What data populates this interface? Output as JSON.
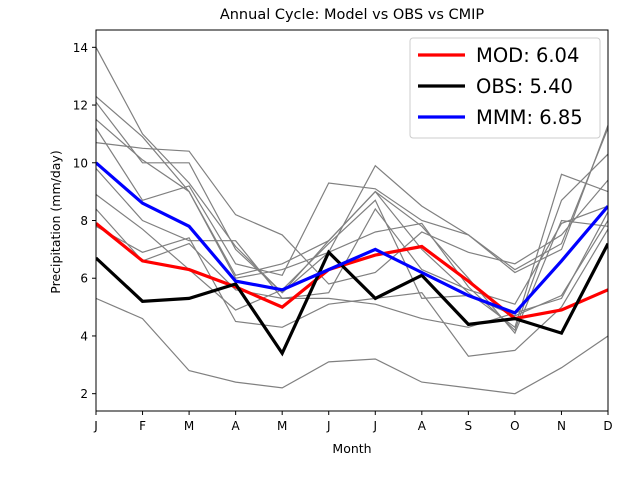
{
  "chart_data": {
    "type": "line",
    "title": "Annual Cycle: Model vs OBS vs CMIP",
    "xlabel": "Month",
    "ylabel": "Precipitation (mm/day)",
    "categories": [
      "J",
      "F",
      "M",
      "A",
      "M",
      "J",
      "J",
      "A",
      "S",
      "O",
      "N",
      "D"
    ],
    "ylim": [
      1.4,
      14.6
    ],
    "yticks": [
      2,
      4,
      6,
      8,
      10,
      12,
      14
    ],
    "grid": false,
    "legend_position": "top-right",
    "ensemble_color": "#808080",
    "ensemble": [
      [
        14.0,
        11.0,
        9.3,
        7.1,
        5.5,
        7.3,
        9.0,
        7.8,
        6.0,
        4.1,
        8.0,
        7.8
      ],
      [
        12.3,
        10.9,
        9.0,
        6.1,
        6.5,
        7.3,
        9.0,
        7.0,
        5.5,
        4.3,
        9.6,
        9.0
      ],
      [
        12.1,
        10.0,
        10.0,
        7.0,
        5.5,
        6.9,
        9.9,
        8.5,
        7.5,
        6.2,
        7.0,
        11.3
      ],
      [
        11.5,
        10.1,
        9.0,
        6.0,
        6.3,
        6.9,
        7.6,
        7.9,
        5.7,
        4.2,
        8.7,
        10.3
      ],
      [
        11.2,
        8.7,
        9.2,
        6.5,
        6.1,
        9.3,
        9.1,
        8.0,
        7.5,
        6.3,
        7.2,
        11.2
      ],
      [
        10.7,
        10.5,
        10.4,
        8.2,
        7.5,
        5.8,
        6.2,
        7.6,
        6.9,
        6.5,
        7.5,
        9.4
      ],
      [
        9.8,
        8.0,
        7.3,
        7.3,
        5.3,
        5.5,
        8.4,
        6.3,
        5.6,
        5.1,
        7.9,
        8.5
      ],
      [
        8.9,
        7.7,
        6.3,
        4.9,
        5.6,
        7.2,
        8.7,
        5.3,
        5.4,
        4.7,
        5.4,
        8.0
      ],
      [
        8.4,
        6.6,
        7.2,
        5.6,
        5.3,
        5.3,
        5.1,
        4.6,
        4.3,
        4.8,
        5.3,
        8.3
      ],
      [
        7.8,
        6.9,
        7.4,
        4.5,
        4.3,
        5.1,
        5.3,
        5.5,
        3.3,
        3.5,
        5.0,
        7.7
      ],
      [
        5.3,
        4.6,
        2.8,
        2.4,
        2.2,
        3.1,
        3.2,
        2.4,
        2.2,
        2.0,
        2.9,
        4.0
      ]
    ],
    "series": [
      {
        "name": "MOD: 6.04",
        "color": "#ff0000",
        "values": [
          7.9,
          6.6,
          6.3,
          5.7,
          5.0,
          6.3,
          6.8,
          7.1,
          5.9,
          4.6,
          4.9,
          5.6
        ]
      },
      {
        "name": "OBS: 5.40",
        "color": "#000000",
        "values": [
          6.7,
          5.2,
          5.3,
          5.8,
          3.4,
          6.9,
          5.3,
          6.1,
          4.4,
          4.6,
          4.1,
          7.2
        ]
      },
      {
        "name": "MMM: 6.85",
        "color": "#0000ff",
        "values": [
          10.0,
          8.6,
          7.8,
          5.9,
          5.6,
          6.3,
          7.0,
          6.2,
          5.4,
          4.8,
          6.6,
          8.5
        ]
      }
    ]
  }
}
